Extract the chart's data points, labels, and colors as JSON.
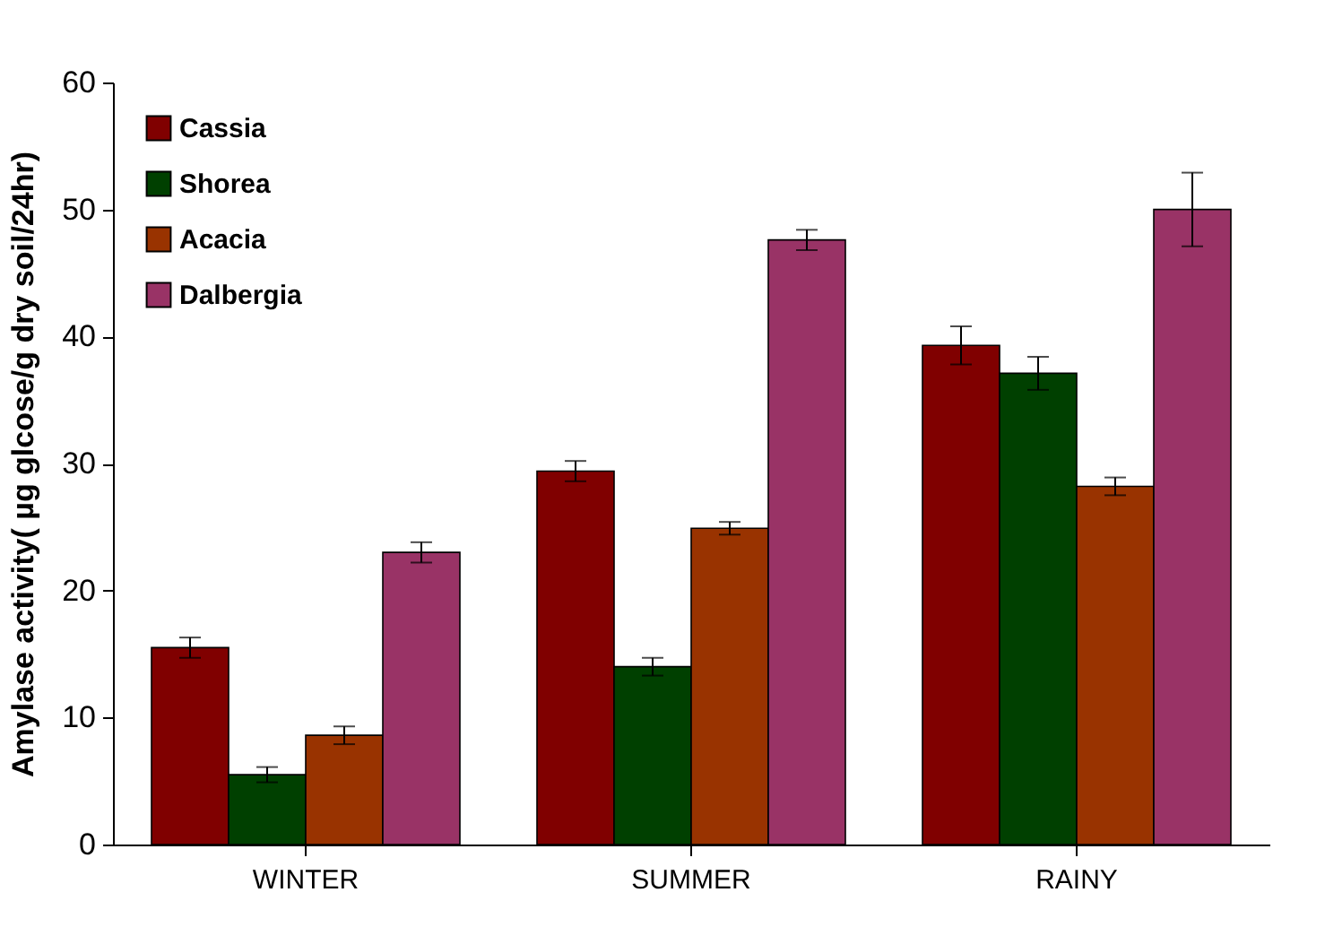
{
  "chart_data": {
    "type": "bar",
    "ylabel": "Amylase activity( µg glcose/g dry soil/24hr)",
    "categories": [
      "WINTER",
      "SUMMER",
      "RAINY"
    ],
    "ylim": [
      0,
      60
    ],
    "yticks": [
      0,
      10,
      20,
      30,
      40,
      50,
      60
    ],
    "grid": false,
    "legend": "top left",
    "series": [
      {
        "name": "Cassia",
        "color": "#800000",
        "values": [
          15.5,
          29.4,
          39.3
        ],
        "errors": [
          0.8,
          0.8,
          1.5
        ]
      },
      {
        "name": "Shorea",
        "color": "#004000",
        "values": [
          5.5,
          14.0,
          37.1
        ],
        "errors": [
          0.6,
          0.7,
          1.3
        ]
      },
      {
        "name": "Acacia",
        "color": "#993300",
        "values": [
          8.6,
          24.9,
          28.2
        ],
        "errors": [
          0.7,
          0.5,
          0.7
        ]
      },
      {
        "name": "Dalbergia",
        "color": "#993366",
        "values": [
          23.0,
          47.6,
          50.0
        ],
        "errors": [
          0.8,
          0.8,
          2.9
        ]
      }
    ]
  }
}
